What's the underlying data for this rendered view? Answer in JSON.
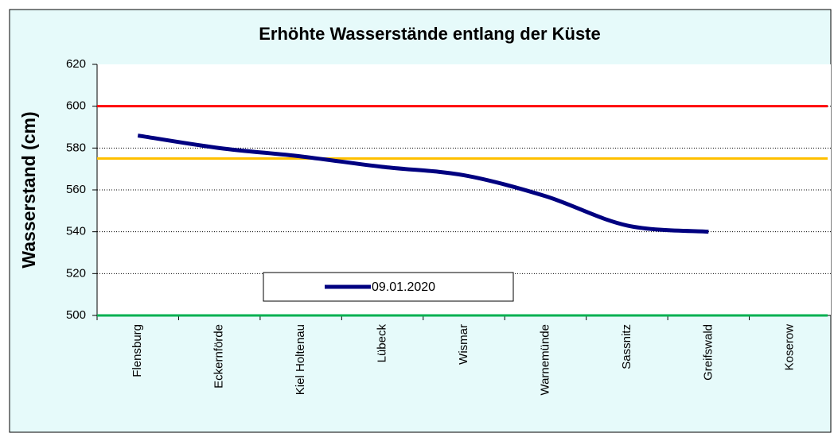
{
  "chart_data": {
    "type": "line",
    "title": "Erhöhte Wasserstände entlang der Küste",
    "y_label": "Wasserstand (cm)",
    "categories": [
      "Flensburg",
      "Eckernförde",
      "Kiel Holtenau",
      "Lübeck",
      "Wismar",
      "Warnemünde",
      "Sassnitz",
      "Greifswald",
      "Koserow"
    ],
    "series": [
      {
        "name": "09.01.2020",
        "color": "#000080",
        "values": [
          586,
          580,
          576,
          571,
          567,
          557,
          543,
          540,
          null
        ]
      }
    ],
    "reference_lines": [
      {
        "value": 600,
        "color": "#ff0000"
      },
      {
        "value": 575,
        "color": "#ffc000"
      },
      {
        "value": 500,
        "color": "#00b050"
      }
    ],
    "ylim": [
      500,
      620
    ],
    "yticks": [
      500,
      520,
      540,
      560,
      580,
      600,
      620
    ],
    "grid": true
  }
}
